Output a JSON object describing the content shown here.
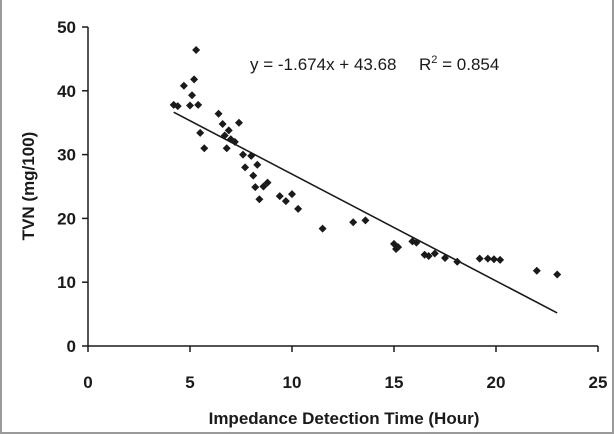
{
  "chart_data": {
    "type": "scatter",
    "title": "",
    "xlabel": "Impedance Detection Time (Hour)",
    "ylabel": "TVN (mg/100)",
    "xlim": [
      0,
      25
    ],
    "ylim": [
      0,
      50
    ],
    "xticks": [
      0,
      5,
      10,
      15,
      20,
      25
    ],
    "yticks": [
      0,
      10,
      20,
      30,
      40,
      50
    ],
    "grid": false,
    "legend": "none",
    "marker_color": "#1a1a1a",
    "points": [
      {
        "x": 4.2,
        "y": 37.8
      },
      {
        "x": 4.4,
        "y": 37.6
      },
      {
        "x": 4.7,
        "y": 40.8
      },
      {
        "x": 5.0,
        "y": 37.7
      },
      {
        "x": 5.1,
        "y": 39.3
      },
      {
        "x": 5.2,
        "y": 41.8
      },
      {
        "x": 5.3,
        "y": 46.4
      },
      {
        "x": 5.4,
        "y": 37.8
      },
      {
        "x": 5.5,
        "y": 33.4
      },
      {
        "x": 5.7,
        "y": 31.0
      },
      {
        "x": 6.4,
        "y": 36.4
      },
      {
        "x": 6.6,
        "y": 34.8
      },
      {
        "x": 6.7,
        "y": 33.0
      },
      {
        "x": 6.8,
        "y": 31.0
      },
      {
        "x": 6.9,
        "y": 33.8
      },
      {
        "x": 7.0,
        "y": 32.4
      },
      {
        "x": 7.2,
        "y": 32.0
      },
      {
        "x": 7.4,
        "y": 35.0
      },
      {
        "x": 7.6,
        "y": 30.0
      },
      {
        "x": 7.7,
        "y": 28.0
      },
      {
        "x": 8.0,
        "y": 29.8
      },
      {
        "x": 8.1,
        "y": 26.7
      },
      {
        "x": 8.2,
        "y": 24.9
      },
      {
        "x": 8.3,
        "y": 28.4
      },
      {
        "x": 8.4,
        "y": 23.0
      },
      {
        "x": 8.6,
        "y": 25.0
      },
      {
        "x": 8.8,
        "y": 25.6
      },
      {
        "x": 9.4,
        "y": 23.5
      },
      {
        "x": 9.7,
        "y": 22.7
      },
      {
        "x": 10.0,
        "y": 23.8
      },
      {
        "x": 10.3,
        "y": 21.5
      },
      {
        "x": 11.5,
        "y": 18.4
      },
      {
        "x": 13.0,
        "y": 19.4
      },
      {
        "x": 13.6,
        "y": 19.7
      },
      {
        "x": 15.0,
        "y": 16.0
      },
      {
        "x": 15.1,
        "y": 15.2
      },
      {
        "x": 15.2,
        "y": 15.5
      },
      {
        "x": 15.9,
        "y": 16.4
      },
      {
        "x": 16.1,
        "y": 16.2
      },
      {
        "x": 16.5,
        "y": 14.3
      },
      {
        "x": 16.7,
        "y": 14.1
      },
      {
        "x": 17.0,
        "y": 14.5
      },
      {
        "x": 17.5,
        "y": 13.8
      },
      {
        "x": 18.1,
        "y": 13.2
      },
      {
        "x": 19.2,
        "y": 13.7
      },
      {
        "x": 19.6,
        "y": 13.7
      },
      {
        "x": 19.9,
        "y": 13.6
      },
      {
        "x": 20.2,
        "y": 13.5
      },
      {
        "x": 22.0,
        "y": 11.8
      },
      {
        "x": 23.0,
        "y": 11.2
      }
    ],
    "trendline": {
      "slope": -1.674,
      "intercept": 43.68,
      "x_range": [
        4.2,
        23.0
      ]
    },
    "annotation": {
      "equation": "y = -1.674x + 43.68",
      "r_squared_label": "R",
      "r_squared_exponent": "2",
      "r_squared_value": " = 0.854"
    }
  }
}
